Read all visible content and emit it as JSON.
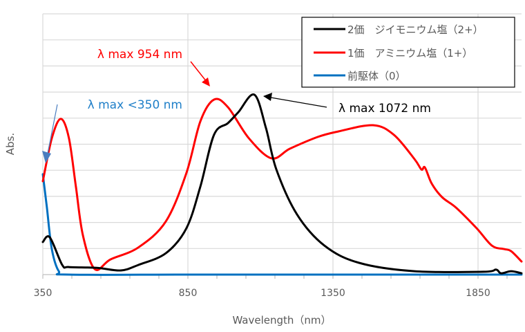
{
  "chart_data": {
    "type": "line",
    "title": "",
    "xlabel": "Wavelength（nm）",
    "ylabel": "Abs.",
    "xlim": [
      350,
      2000
    ],
    "ylim": [
      0,
      10
    ],
    "x_ticks": [
      350,
      850,
      1350,
      1850
    ],
    "x_minor_step": 100,
    "y_grid_step": 1,
    "grid": true,
    "y_tick_labels_shown": false,
    "legend": {
      "placement": "top-right",
      "entries": [
        {
          "label": "2価　ジイモニウム塩（2+）",
          "color": "#000000"
        },
        {
          "label": "1価　アミニウム塩（1+）",
          "color": "#ff0000"
        },
        {
          "label": "前駆体（0）",
          "color": "#0070c0"
        }
      ]
    },
    "series": [
      {
        "name": "2価　ジイモニウム塩（2+）",
        "color": "#000000",
        "points": [
          [
            350,
            1.25
          ],
          [
            374,
            1.43
          ],
          [
            417,
            0.37
          ],
          [
            440,
            0.29
          ],
          [
            536,
            0.26
          ],
          [
            619,
            0.16
          ],
          [
            679,
            0.37
          ],
          [
            774,
            0.82
          ],
          [
            845,
            1.78
          ],
          [
            893,
            3.38
          ],
          [
            940,
            5.36
          ],
          [
            988,
            5.81
          ],
          [
            1024,
            6.23
          ],
          [
            1079,
            6.9
          ],
          [
            1119,
            5.62
          ],
          [
            1155,
            4.03
          ],
          [
            1226,
            2.31
          ],
          [
            1321,
            1.11
          ],
          [
            1440,
            0.45
          ],
          [
            1631,
            0.13
          ],
          [
            1869,
            0.11
          ],
          [
            1912,
            0.19
          ],
          [
            1929,
            0.05
          ],
          [
            1964,
            0.13
          ],
          [
            2000,
            0.05
          ]
        ]
      },
      {
        "name": "1価　アミニウム塩（1+）",
        "color": "#ff0000",
        "points": [
          [
            350,
            3.58
          ],
          [
            381,
            5.23
          ],
          [
            412,
            5.97
          ],
          [
            440,
            5.23
          ],
          [
            464,
            3.37
          ],
          [
            488,
            1.51
          ],
          [
            529,
            0.21
          ],
          [
            583,
            0.58
          ],
          [
            679,
            1.04
          ],
          [
            774,
            2.04
          ],
          [
            845,
            3.9
          ],
          [
            893,
            5.88
          ],
          [
            940,
            6.71
          ],
          [
            988,
            6.42
          ],
          [
            1060,
            5.23
          ],
          [
            1138,
            4.46
          ],
          [
            1202,
            4.83
          ],
          [
            1298,
            5.28
          ],
          [
            1369,
            5.49
          ],
          [
            1488,
            5.73
          ],
          [
            1560,
            5.36
          ],
          [
            1631,
            4.43
          ],
          [
            1655,
            4.03
          ],
          [
            1667,
            4.11
          ],
          [
            1690,
            3.5
          ],
          [
            1726,
            2.97
          ],
          [
            1774,
            2.57
          ],
          [
            1845,
            1.78
          ],
          [
            1898,
            1.11
          ],
          [
            1940,
            0.98
          ],
          [
            1964,
            0.9
          ],
          [
            2000,
            0.5
          ]
        ]
      },
      {
        "name": "前駆体（0）",
        "color": "#0070c0",
        "points": [
          [
            350,
            3.85
          ],
          [
            364,
            2.57
          ],
          [
            381,
            0.98
          ],
          [
            405,
            0.13
          ],
          [
            440,
            0.0
          ],
          [
            850,
            0.0
          ],
          [
            1350,
            0.0
          ],
          [
            2000,
            0.0
          ]
        ]
      }
    ],
    "annotations": [
      {
        "text": "λ max 954 nm",
        "color": "#ff0000",
        "points_to_x": 954,
        "series": "1価　アミニウム塩（1+）"
      },
      {
        "text": "λ max <350 nm",
        "color": "#1f7fc8",
        "points_to_x": 350,
        "series": "前駆体（0）"
      },
      {
        "text": "λ max 1072 nm",
        "color": "#000000",
        "points_to_x": 1072,
        "series": "2価　ジイモニウム塩（2+）"
      }
    ]
  }
}
